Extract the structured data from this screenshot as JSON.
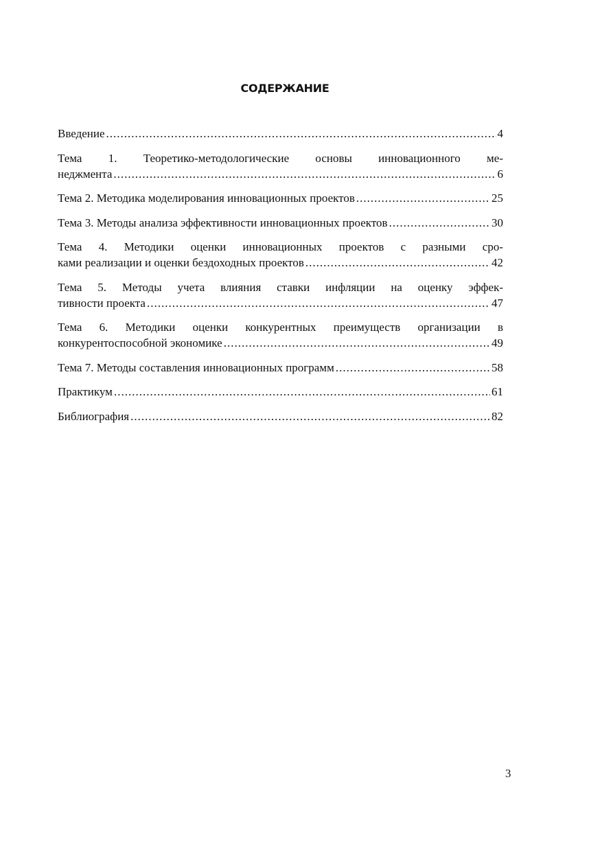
{
  "title": "СОДЕРЖАНИЕ",
  "entries": [
    {
      "lines": [
        "Введение"
      ],
      "page": "4"
    },
    {
      "lines": [
        "Тема 1. Теоретико-методологические основы инновационного ме-",
        "неджмента"
      ],
      "page": "6"
    },
    {
      "lines": [
        "Тема 2. Методика моделирования инновационных проектов"
      ],
      "page": "25"
    },
    {
      "lines": [
        "Тема 3. Методы анализа эффективности инновационных проектов"
      ],
      "page": "30"
    },
    {
      "lines": [
        "Тема 4. Методики оценки инновационных проектов с разными сро-",
        "ками реализации и оценки бездоходных проектов"
      ],
      "page": "42"
    },
    {
      "lines": [
        "Тема 5. Методы учета влияния ставки инфляции на оценку эффек-",
        "тивности проекта"
      ],
      "page": "47"
    },
    {
      "lines": [
        "Тема 6. Методики оценки конкурентных преимуществ организации в",
        "конкурентоспособной экономике"
      ],
      "page": "49"
    },
    {
      "lines": [
        "Тема 7. Методы составления инновационных программ"
      ],
      "page": "58"
    },
    {
      "lines": [
        "Практикум"
      ],
      "page": "61"
    },
    {
      "lines": [
        "Библиография"
      ],
      "page": "82"
    }
  ],
  "page_number": "3"
}
